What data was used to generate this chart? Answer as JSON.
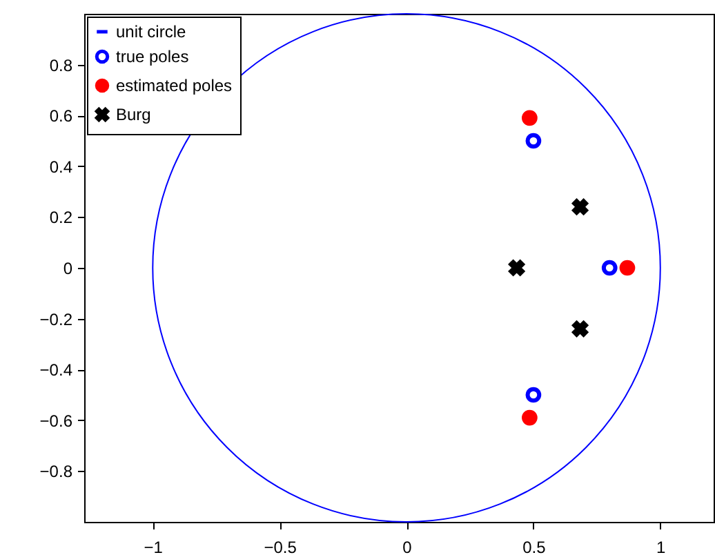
{
  "chart_data": {
    "type": "scatter",
    "xlim": [
      -1.27,
      1.21
    ],
    "ylim": [
      -1,
      1
    ],
    "xticks": [
      -1,
      -0.5,
      0,
      0.5,
      1
    ],
    "yticks": [
      -0.8,
      -0.6,
      -0.4,
      -0.2,
      0,
      0.2,
      0.4,
      0.6,
      0.8
    ],
    "grid": false,
    "legend": "top left",
    "series": [
      {
        "name": "unit circle",
        "type": "line",
        "color": "#0000ff",
        "marker": "none",
        "line_style": "solid"
      },
      {
        "name": "true poles",
        "color": "#0000ff",
        "marker": "circle-open",
        "x": [
          0.5,
          0.8,
          0.5
        ],
        "values": [
          0.5,
          0,
          -0.5
        ]
      },
      {
        "name": "estimated poles",
        "color": "#ff0000",
        "marker": "circle",
        "x": [
          0.485,
          0.87,
          0.485
        ],
        "values": [
          0.59,
          0,
          -0.59
        ]
      },
      {
        "name": "Burg",
        "color": "#000000",
        "marker": "cross",
        "x": [
          0.684,
          0.434,
          0.684
        ],
        "values": [
          0.24,
          0,
          -0.24
        ]
      }
    ]
  }
}
